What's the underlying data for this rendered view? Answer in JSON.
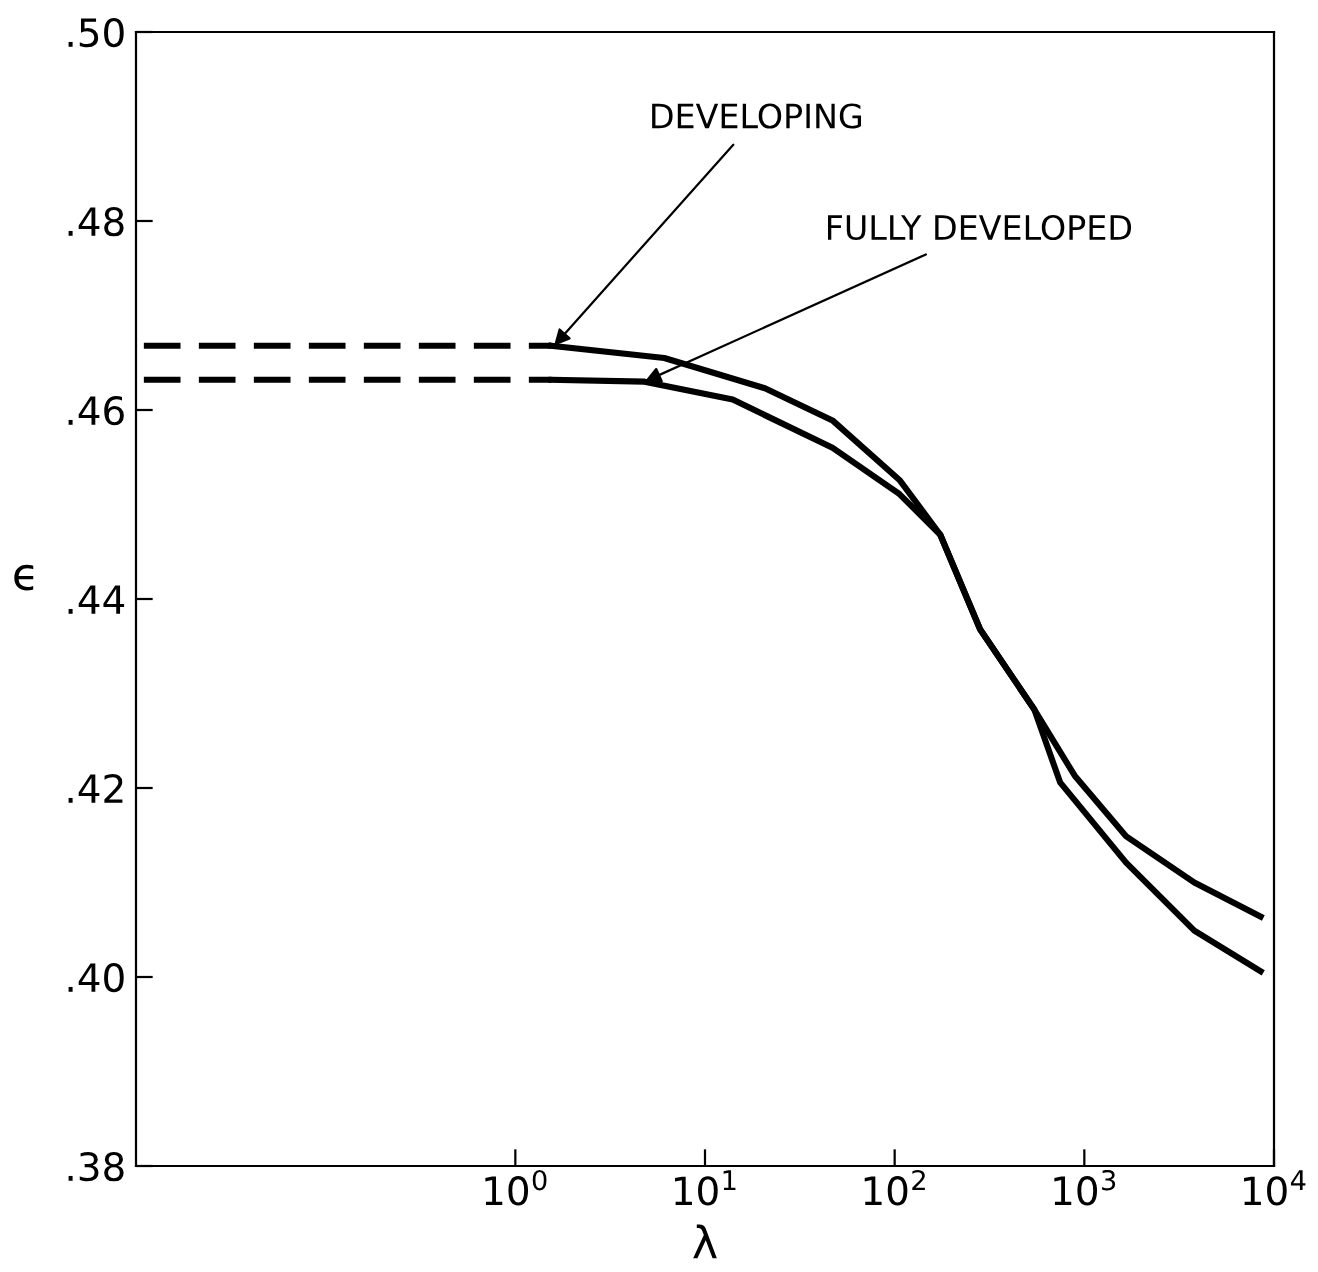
{
  "chart_data": {
    "type": "line",
    "xlabel": "λ",
    "ylabel": "ϵ",
    "log": "x",
    "xlim": [
      0.01,
      10000
    ],
    "ylim": [
      0.38,
      0.5
    ],
    "xticks": [
      {
        "value": 1,
        "label": "10$^{0}$"
      },
      {
        "value": 10,
        "label": "10$^{1}$"
      },
      {
        "value": 100,
        "label": "10$^{2}$"
      },
      {
        "value": 1000,
        "label": "10$^{3}$"
      },
      {
        "value": 10000,
        "label": "10$^{4}$"
      }
    ],
    "yticks": [
      {
        "value": 0.38,
        "label": ".38"
      },
      {
        "value": 0.4,
        "label": ".40"
      },
      {
        "value": 0.42,
        "label": ".42"
      },
      {
        "value": 0.44,
        "label": ".44"
      },
      {
        "value": 0.46,
        "label": ".46"
      },
      {
        "value": 0.48,
        "label": ".48"
      },
      {
        "value": 0.5,
        "label": ".50"
      }
    ],
    "grid": false,
    "legend": false,
    "marker": "none",
    "series": [
      {
        "color": "#000000",
        "line_style": "dashed",
        "x": [
          0.011,
          1.55
        ],
        "values": [
          0.4668,
          0.4668
        ]
      },
      {
        "color": "#000000",
        "line_style": "solid",
        "x": [
          1.55,
          6.1,
          20.7,
          47,
          106,
          174,
          282,
          545,
          890,
          1660,
          3800,
          8500
        ],
        "values": [
          0.4668,
          0.4655,
          0.4623,
          0.4589,
          0.4526,
          0.4468,
          0.4368,
          0.4283,
          0.4213,
          0.4149,
          0.41,
          0.4064
        ]
      },
      {
        "color": "#000000",
        "line_style": "dashed",
        "x": [
          0.011,
          1.55
        ],
        "values": [
          0.4632,
          0.4632
        ]
      },
      {
        "color": "#000000",
        "line_style": "solid",
        "x": [
          1.55,
          4.8,
          14,
          47,
          106,
          174,
          282,
          545,
          745,
          1660,
          3800,
          8500
        ],
        "values": [
          0.4632,
          0.463,
          0.4611,
          0.456,
          0.4511,
          0.4468,
          0.4368,
          0.4283,
          0.4206,
          0.4121,
          0.4049,
          0.4006
        ]
      }
    ],
    "annotations": [
      {
        "text": "DEVELOPING",
        "x": 1.6,
        "y": 0.4668
      },
      {
        "text": "FULLY DEVELOPED",
        "x": 4.8,
        "y": 0.463
      }
    ]
  }
}
